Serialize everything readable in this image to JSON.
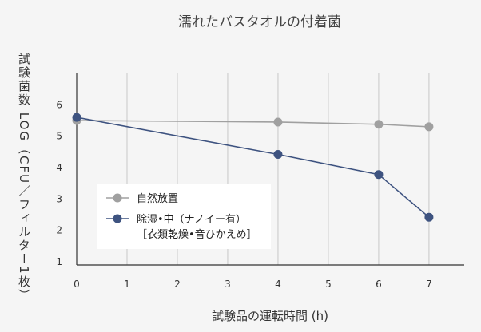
{
  "chart_data": {
    "type": "line",
    "title": "濡れたバスタオルの付着菌",
    "xlabel": "試験品の運転時間 (h)",
    "ylabel": "試験菌数 LOG（CFU／フィルター1枚）",
    "x_ticks": [
      "0",
      "1",
      "2",
      "3",
      "4",
      "5",
      "6",
      "7"
    ],
    "y_ticks": [
      "1",
      "2",
      "3",
      "4",
      "5",
      "6"
    ],
    "xlim": [
      0,
      7.7
    ],
    "ylim": [
      0.9,
      7
    ],
    "grid": "vertical",
    "legend_position": "lower-left",
    "series": [
      {
        "name_lines": [
          "自然放置"
        ],
        "color": "#a0a0a0",
        "points": [
          {
            "x": 0,
            "y": 5.5
          },
          {
            "x": 4,
            "y": 5.45
          },
          {
            "x": 6,
            "y": 5.38
          },
          {
            "x": 7,
            "y": 5.3
          }
        ]
      },
      {
        "name_lines": [
          "除湿•中（ナノイー有）",
          "［衣類乾燥•音ひかえめ］"
        ],
        "color": "#3e5380",
        "points": [
          {
            "x": 0,
            "y": 5.6
          },
          {
            "x": 4,
            "y": 4.42
          },
          {
            "x": 6,
            "y": 3.78
          },
          {
            "x": 7,
            "y": 2.42
          }
        ]
      }
    ]
  }
}
